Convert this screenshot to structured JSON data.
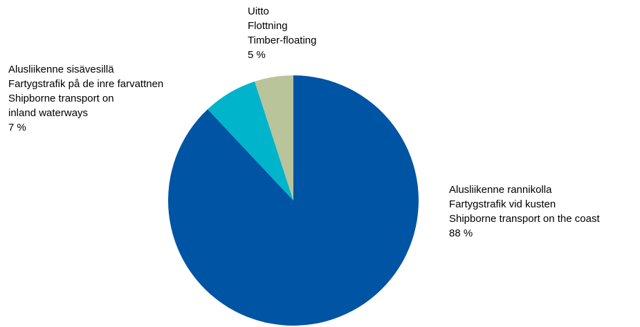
{
  "chart_data": {
    "type": "pie",
    "slices": [
      {
        "lines": [
          "Alusliikenne rannikolla",
          "Fartygstrafik vid kusten",
          "Shipborne transport on the coast"
        ],
        "value_label": "88 %",
        "value": 88,
        "color": "#0054A4"
      },
      {
        "lines": [
          "Alusliikenne sisävesillä",
          "Fartygstrafik på de inre farvattnen",
          "Shipborne transport on",
          "inland waterways"
        ],
        "value_label": "7 %",
        "value": 7,
        "color": "#00B4CB"
      },
      {
        "lines": [
          "Uitto",
          "Flottning",
          "Timber-floating"
        ],
        "value_label": "5 %",
        "value": 5,
        "color": "#B9C49A"
      }
    ],
    "start_angle": "12 o'clock",
    "direction": "clockwise",
    "legend": "none"
  }
}
